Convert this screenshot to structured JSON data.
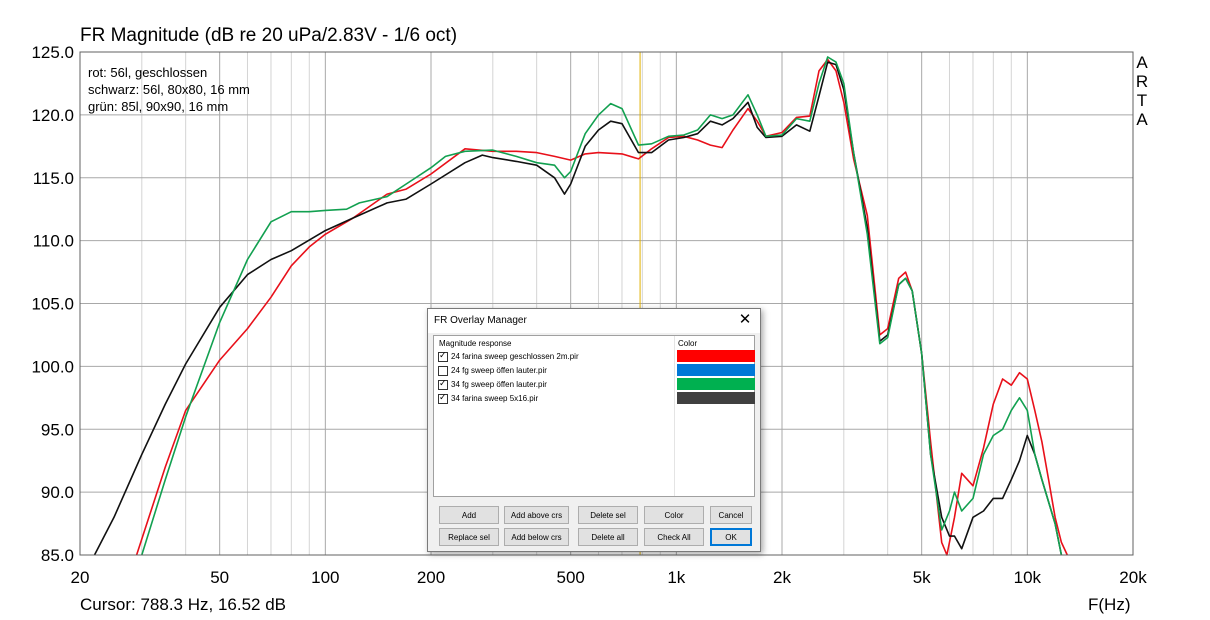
{
  "chart_data": {
    "type": "line",
    "title": "FR Magnitude (dB re 20 uPa/2.83V - 1/6 oct)",
    "xlabel": "F(Hz)",
    "ylabel": "",
    "xscale": "log",
    "xlim": [
      20,
      20000
    ],
    "ylim": [
      85,
      125
    ],
    "x_ticks": [
      20,
      50,
      100,
      200,
      500,
      1000,
      2000,
      5000,
      10000,
      20000
    ],
    "x_tick_labels": [
      "20",
      "50",
      "100",
      "200",
      "500",
      "1k",
      "2k",
      "5k",
      "10k",
      "20k"
    ],
    "y_ticks": [
      85,
      90,
      95,
      100,
      105,
      110,
      115,
      120,
      125
    ],
    "y_tick_labels": [
      "85.0",
      "90.0",
      "95.0",
      "100.0",
      "105.0",
      "110.0",
      "115.0",
      "120.0",
      "125.0"
    ],
    "grid": true,
    "cursor_frequency": 788.3,
    "cursor_readout": "Cursor: 788.3 Hz, 16.52 dB",
    "watermark": "ARTA",
    "annotations": [
      "rot: 56l, geschlossen",
      "schwarz: 56l, 80x80, 16 mm",
      "grün: 85l, 90x90, 16 mm"
    ],
    "series": [
      {
        "color": "#e8101a",
        "points": [
          [
            29,
            85
          ],
          [
            35,
            92
          ],
          [
            40,
            96.5
          ],
          [
            50,
            100.5
          ],
          [
            60,
            103
          ],
          [
            70,
            105.5
          ],
          [
            80,
            108
          ],
          [
            90,
            109.5
          ],
          [
            100,
            110.5
          ],
          [
            120,
            111.8
          ],
          [
            150,
            113.7
          ],
          [
            170,
            114.1
          ],
          [
            200,
            115.3
          ],
          [
            250,
            117.3
          ],
          [
            300,
            117.1
          ],
          [
            350,
            117.1
          ],
          [
            400,
            117.0
          ],
          [
            450,
            116.7
          ],
          [
            500,
            116.4
          ],
          [
            550,
            116.9
          ],
          [
            600,
            117.0
          ],
          [
            700,
            116.9
          ],
          [
            780,
            116.5
          ],
          [
            850,
            117.3
          ],
          [
            950,
            118.2
          ],
          [
            1050,
            118.3
          ],
          [
            1150,
            118.0
          ],
          [
            1250,
            117.6
          ],
          [
            1350,
            117.4
          ],
          [
            1450,
            118.8
          ],
          [
            1600,
            120.5
          ],
          [
            1700,
            119.5
          ],
          [
            1800,
            118.3
          ],
          [
            2000,
            118.6
          ],
          [
            2200,
            119.8
          ],
          [
            2400,
            119.9
          ],
          [
            2550,
            123.5
          ],
          [
            2700,
            124.4
          ],
          [
            2850,
            123.5
          ],
          [
            3000,
            121.0
          ],
          [
            3200,
            116.5
          ],
          [
            3500,
            112.0
          ],
          [
            3800,
            102.5
          ],
          [
            4000,
            103.0
          ],
          [
            4300,
            107.0
          ],
          [
            4500,
            107.5
          ],
          [
            4700,
            106.0
          ],
          [
            5000,
            101.0
          ],
          [
            5300,
            94.0
          ],
          [
            5700,
            86.0
          ],
          [
            5900,
            85.0
          ],
          [
            6200,
            88.0
          ],
          [
            6500,
            91.5
          ],
          [
            7000,
            90.5
          ],
          [
            7500,
            93.5
          ],
          [
            8000,
            97.0
          ],
          [
            8500,
            99.0
          ],
          [
            9000,
            98.5
          ],
          [
            9500,
            99.5
          ],
          [
            10000,
            99.0
          ],
          [
            10500,
            96.5
          ],
          [
            11000,
            94.0
          ],
          [
            11500,
            91.0
          ],
          [
            12000,
            88.0
          ],
          [
            12500,
            86.0
          ],
          [
            13000,
            85.0
          ]
        ]
      },
      {
        "color": "#111111",
        "points": [
          [
            22,
            85
          ],
          [
            25,
            88
          ],
          [
            30,
            93
          ],
          [
            35,
            97
          ],
          [
            40,
            100.2
          ],
          [
            50,
            104.7
          ],
          [
            60,
            107.3
          ],
          [
            70,
            108.5
          ],
          [
            80,
            109.2
          ],
          [
            100,
            110.8
          ],
          [
            120,
            111.8
          ],
          [
            150,
            113.0
          ],
          [
            170,
            113.3
          ],
          [
            200,
            114.5
          ],
          [
            250,
            116.2
          ],
          [
            280,
            116.8
          ],
          [
            300,
            116.6
          ],
          [
            350,
            116.3
          ],
          [
            400,
            116.0
          ],
          [
            450,
            115.0
          ],
          [
            480,
            113.7
          ],
          [
            500,
            114.5
          ],
          [
            550,
            117.5
          ],
          [
            600,
            118.8
          ],
          [
            650,
            119.5
          ],
          [
            700,
            119.3
          ],
          [
            780,
            117.0
          ],
          [
            850,
            117.0
          ],
          [
            950,
            118.0
          ],
          [
            1050,
            118.2
          ],
          [
            1150,
            118.5
          ],
          [
            1250,
            119.5
          ],
          [
            1350,
            119.2
          ],
          [
            1450,
            119.7
          ],
          [
            1600,
            121.0
          ],
          [
            1700,
            119.0
          ],
          [
            1800,
            118.2
          ],
          [
            2000,
            118.3
          ],
          [
            2200,
            119.2
          ],
          [
            2400,
            118.7
          ],
          [
            2550,
            121.5
          ],
          [
            2700,
            124.2
          ],
          [
            2850,
            124.0
          ],
          [
            3000,
            122.0
          ],
          [
            3200,
            117.0
          ],
          [
            3500,
            111.0
          ],
          [
            3800,
            102.0
          ],
          [
            4000,
            102.5
          ],
          [
            4300,
            106.5
          ],
          [
            4500,
            107.0
          ],
          [
            4700,
            106.0
          ],
          [
            5000,
            101.0
          ],
          [
            5300,
            93.0
          ],
          [
            5700,
            88.0
          ],
          [
            6000,
            86.5
          ],
          [
            6200,
            86.5
          ],
          [
            6500,
            85.5
          ],
          [
            7000,
            88.0
          ],
          [
            7500,
            88.5
          ],
          [
            8000,
            89.5
          ],
          [
            8500,
            89.5
          ],
          [
            9000,
            91.0
          ],
          [
            9500,
            92.5
          ],
          [
            10000,
            94.5
          ],
          [
            10500,
            93.0
          ],
          [
            11000,
            91.0
          ],
          [
            12000,
            87.5
          ],
          [
            12500,
            85.0
          ]
        ]
      },
      {
        "color": "#12a050",
        "points": [
          [
            30,
            85
          ],
          [
            35,
            91
          ],
          [
            40,
            96
          ],
          [
            50,
            103.5
          ],
          [
            60,
            108.5
          ],
          [
            70,
            111.5
          ],
          [
            80,
            112.3
          ],
          [
            90,
            112.3
          ],
          [
            100,
            112.4
          ],
          [
            115,
            112.5
          ],
          [
            125,
            113.0
          ],
          [
            150,
            113.5
          ],
          [
            170,
            114.5
          ],
          [
            200,
            115.8
          ],
          [
            220,
            116.7
          ],
          [
            250,
            117.1
          ],
          [
            300,
            117.2
          ],
          [
            350,
            116.7
          ],
          [
            400,
            116.2
          ],
          [
            450,
            116.0
          ],
          [
            480,
            115.0
          ],
          [
            500,
            115.5
          ],
          [
            550,
            118.5
          ],
          [
            600,
            120.0
          ],
          [
            650,
            120.9
          ],
          [
            700,
            120.5
          ],
          [
            780,
            117.6
          ],
          [
            850,
            117.7
          ],
          [
            950,
            118.3
          ],
          [
            1050,
            118.4
          ],
          [
            1150,
            118.8
          ],
          [
            1250,
            120.0
          ],
          [
            1350,
            119.7
          ],
          [
            1450,
            120.0
          ],
          [
            1600,
            121.6
          ],
          [
            1700,
            120.0
          ],
          [
            1800,
            118.3
          ],
          [
            2000,
            118.4
          ],
          [
            2200,
            119.7
          ],
          [
            2400,
            119.5
          ],
          [
            2550,
            122.5
          ],
          [
            2700,
            124.6
          ],
          [
            2850,
            124.2
          ],
          [
            3000,
            122.5
          ],
          [
            3200,
            117.0
          ],
          [
            3500,
            110.5
          ],
          [
            3800,
            101.8
          ],
          [
            4000,
            102.3
          ],
          [
            4300,
            106.5
          ],
          [
            4500,
            107.0
          ],
          [
            4700,
            106.0
          ],
          [
            5000,
            101.0
          ],
          [
            5300,
            93.0
          ],
          [
            5700,
            87.0
          ],
          [
            6000,
            88.5
          ],
          [
            6200,
            90.0
          ],
          [
            6500,
            88.5
          ],
          [
            7000,
            89.5
          ],
          [
            7500,
            93.0
          ],
          [
            8000,
            94.5
          ],
          [
            8500,
            95.0
          ],
          [
            9000,
            96.5
          ],
          [
            9500,
            97.5
          ],
          [
            10000,
            96.5
          ],
          [
            10500,
            93.0
          ],
          [
            11000,
            91.0
          ],
          [
            12000,
            87.5
          ],
          [
            12500,
            85.0
          ]
        ]
      }
    ]
  },
  "dialog": {
    "title": "FR Overlay Manager",
    "col_response": "Magnitude response",
    "col_color": "Color",
    "rows": [
      {
        "label": "24 farina sweep geschlossen 2m.pir",
        "checked": true,
        "color": "#ff0000"
      },
      {
        "label": "24 fg sweep öffen lauter.pir",
        "checked": false,
        "color": "#0078d7"
      },
      {
        "label": "34 fg sweep öffen lauter.pir",
        "checked": true,
        "color": "#00b050"
      },
      {
        "label": "34 farina sweep 5x16.pir",
        "checked": true,
        "color": "#404040"
      }
    ],
    "buttons": {
      "add": "Add",
      "add_above": "Add above crs",
      "delete_sel": "Delete sel",
      "color": "Color",
      "cancel": "Cancel",
      "replace_sel": "Replace sel",
      "add_below": "Add below crs",
      "delete_all": "Delete all",
      "check_all": "Check All",
      "ok": "OK"
    }
  }
}
